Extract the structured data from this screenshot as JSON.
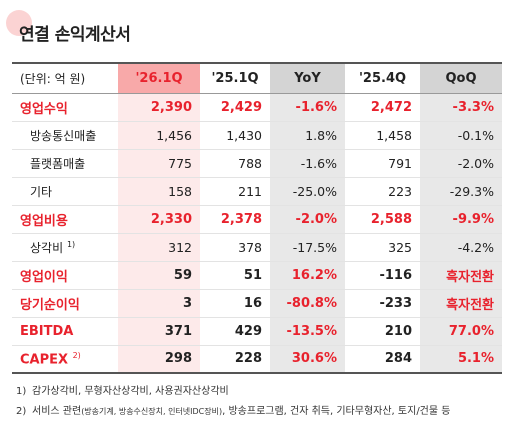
{
  "header": {
    "title": "연결 손익계산서"
  },
  "table": {
    "unit": "(단위: 억 원)",
    "columns": [
      "'26.1Q",
      "'25.1Q",
      "YoY",
      "'25.4Q",
      "QoQ"
    ],
    "rows": [
      {
        "label": "영업수익",
        "values": [
          "2,390",
          "2,429",
          "-1.6%",
          "2,472",
          "-3.3%"
        ]
      },
      {
        "label": "방송통신매출",
        "values": [
          "1,456",
          "1,430",
          "1.8%",
          "1,458",
          "-0.1%"
        ]
      },
      {
        "label": "플랫폼매출",
        "values": [
          "775",
          "788",
          "-1.6%",
          "791",
          "-2.0%"
        ]
      },
      {
        "label": "기타",
        "values": [
          "158",
          "211",
          "-25.0%",
          "223",
          "-29.3%"
        ]
      },
      {
        "label": "영업비용",
        "values": [
          "2,330",
          "2,378",
          "-2.0%",
          "2,588",
          "-9.9%"
        ]
      },
      {
        "label": "상각비",
        "note": "1)",
        "values": [
          "312",
          "378",
          "-17.5%",
          "325",
          "-4.2%"
        ]
      },
      {
        "label": "영업이익",
        "values": [
          "59",
          "51",
          "16.2%",
          "-116",
          "흑자전환"
        ]
      },
      {
        "label": "당기순이익",
        "values": [
          "3",
          "16",
          "-80.8%",
          "-233",
          "흑자전환"
        ]
      },
      {
        "label": "EBITDA",
        "values": [
          "371",
          "429",
          "-13.5%",
          "210",
          "77.0%"
        ]
      },
      {
        "label": "CAPEX",
        "note": "2)",
        "values": [
          "298",
          "228",
          "30.6%",
          "284",
          "5.1%"
        ]
      }
    ]
  },
  "footnotes": [
    {
      "num": "1)",
      "text": "감가상각비, 무형자산상각비, 사용권자산상각비"
    },
    {
      "num": "2)",
      "text": "서비스 관련",
      "small": "(방송기계, 방송수신장치, 인터넷IDC장비)",
      "rest": ", 방송프로그램, 건자 취득, 기타무형자산, 토지/건물 등"
    }
  ]
}
